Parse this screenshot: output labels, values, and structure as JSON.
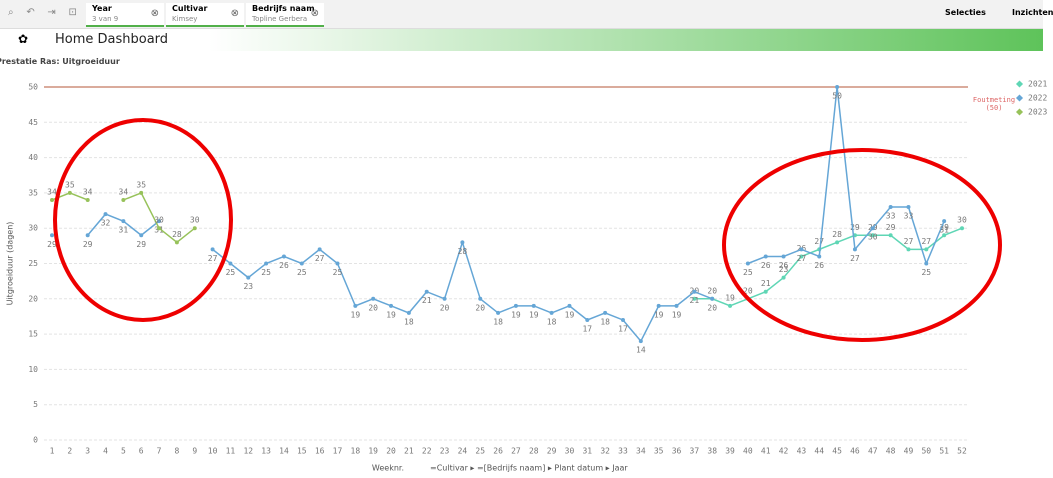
{
  "toolbar": {
    "chips": [
      {
        "field": "Year",
        "value": "3 van 9"
      },
      {
        "field": "Cultivar",
        "value": "Kimsey"
      },
      {
        "field": "Bedrijfs naam",
        "value": "Topline Gerbera"
      }
    ],
    "selections": "Selecties",
    "insights": "Inzichten"
  },
  "header": {
    "title": "Home Dashboard"
  },
  "chart_data": {
    "type": "line",
    "title": "Prestatie Ras: Uitgroeiduur",
    "y_label": "Uitgroeiduur (dagen)",
    "x_label": "Weeknr.",
    "x_drill": "=Cultivar ▸ =[Bedrijfs naam] ▸ Plant datum ▸ Jaar",
    "categories": [
      "1",
      "2",
      "3",
      "4",
      "5",
      "6",
      "7",
      "8",
      "9",
      "10",
      "11",
      "12",
      "13",
      "14",
      "15",
      "16",
      "17",
      "18",
      "19",
      "20",
      "21",
      "22",
      "23",
      "24",
      "25",
      "26",
      "27",
      "28",
      "29",
      "30",
      "31",
      "32",
      "33",
      "34",
      "35",
      "36",
      "37",
      "38",
      "39",
      "40",
      "41",
      "42",
      "43",
      "44",
      "45",
      "46",
      "47",
      "48",
      "49",
      "50",
      "51",
      "52"
    ],
    "series": [
      {
        "name": "2021",
        "color": "#5fd6b5",
        "values": [
          null,
          null,
          null,
          null,
          null,
          null,
          null,
          null,
          null,
          null,
          null,
          null,
          null,
          null,
          null,
          null,
          null,
          null,
          null,
          null,
          null,
          null,
          null,
          null,
          null,
          null,
          null,
          null,
          null,
          null,
          null,
          null,
          null,
          null,
          null,
          null,
          20,
          20,
          19,
          20,
          21,
          23,
          26,
          27,
          28,
          29,
          29,
          29,
          27,
          27,
          29,
          30
        ]
      },
      {
        "name": "2022",
        "color": "#65a6d6",
        "values": [
          29,
          null,
          29,
          32,
          31,
          29,
          31,
          null,
          null,
          27,
          25,
          23,
          25,
          26,
          25,
          27,
          25,
          19,
          20,
          19,
          18,
          21,
          20,
          28,
          20,
          18,
          19,
          19,
          18,
          19,
          17,
          18,
          17,
          14,
          19,
          19,
          21,
          20,
          null,
          25,
          26,
          26,
          27,
          26,
          50,
          27,
          30,
          33,
          33,
          25,
          31,
          null
        ]
      },
      {
        "name": "2023",
        "color": "#97c25a",
        "values": [
          34,
          35,
          34,
          null,
          34,
          35,
          30,
          28,
          30,
          null,
          null,
          null,
          null,
          null,
          null,
          null,
          null,
          null,
          null,
          null,
          null,
          null,
          null,
          null,
          null,
          null,
          null,
          null,
          null,
          null,
          null,
          null,
          null,
          null,
          null,
          null,
          null,
          null,
          null,
          null,
          null,
          null,
          null,
          null,
          null,
          null,
          null,
          null,
          null,
          null,
          null,
          null
        ]
      }
    ],
    "ylim": [
      0,
      50
    ],
    "yticks": [
      0,
      5,
      10,
      15,
      20,
      25,
      30,
      35,
      40,
      45,
      50
    ],
    "grid": true,
    "legend": "right",
    "reference_line": {
      "value": 50,
      "label": "Foutmeting (50)",
      "color": "#b5573a"
    }
  }
}
